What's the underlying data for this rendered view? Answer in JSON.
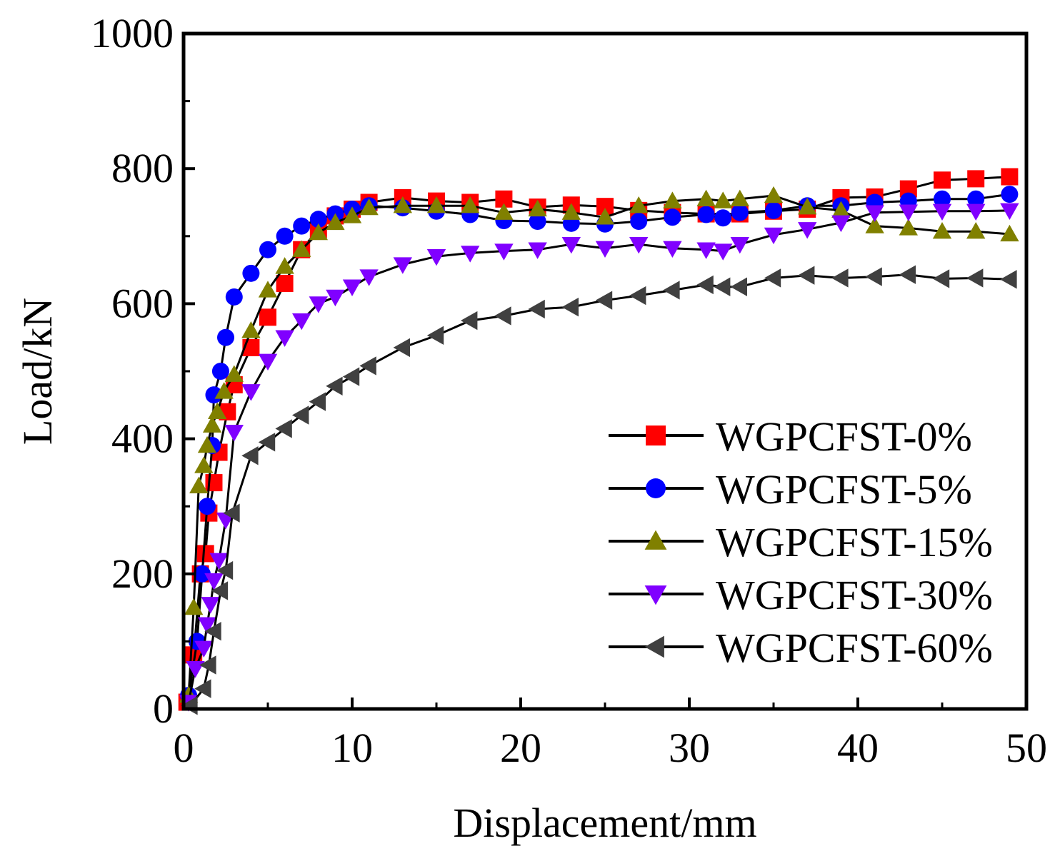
{
  "chart_data": {
    "type": "line",
    "xlabel": "Displacement/mm",
    "ylabel": "Load/kN",
    "xlim": [
      0,
      50
    ],
    "ylim": [
      0,
      1000
    ],
    "x_ticks": [
      0,
      10,
      20,
      30,
      40,
      50
    ],
    "y_ticks": [
      0,
      200,
      400,
      600,
      800,
      1000
    ],
    "x_tick_labels": [
      "0",
      "10",
      "20",
      "30",
      "40",
      "50"
    ],
    "y_tick_labels": [
      "0",
      "200",
      "400",
      "600",
      "800",
      "1000"
    ],
    "grid": false,
    "legend_position": "bottom-right",
    "series": [
      {
        "name": "WGPCFST-0%",
        "color": "#ff0000",
        "marker": "square",
        "points": [
          [
            0.2,
            10
          ],
          [
            0.6,
            80
          ],
          [
            1.0,
            200
          ],
          [
            1.3,
            230
          ],
          [
            1.5,
            290
          ],
          [
            1.8,
            335
          ],
          [
            2.1,
            380
          ],
          [
            2.6,
            440
          ],
          [
            3.0,
            480
          ],
          [
            4.0,
            535
          ],
          [
            5.0,
            580
          ],
          [
            6.0,
            630
          ],
          [
            7.0,
            680
          ],
          [
            8.0,
            710
          ],
          [
            9.0,
            730
          ],
          [
            10.0,
            740
          ],
          [
            11.0,
            750
          ],
          [
            13.0,
            757
          ],
          [
            15.0,
            752
          ],
          [
            17.0,
            750
          ],
          [
            19.0,
            755
          ],
          [
            21.0,
            743
          ],
          [
            23.0,
            746
          ],
          [
            25.0,
            744
          ],
          [
            27.0,
            738
          ],
          [
            29.0,
            735
          ],
          [
            31.0,
            733
          ],
          [
            33.0,
            733
          ],
          [
            35.0,
            737
          ],
          [
            37.0,
            740
          ],
          [
            39.0,
            757
          ],
          [
            41.0,
            758
          ],
          [
            43.0,
            770
          ],
          [
            45.0,
            783
          ],
          [
            47.0,
            785
          ],
          [
            49.0,
            788
          ]
        ]
      },
      {
        "name": "WGPCFST-5%",
        "color": "#0000ff",
        "marker": "circle",
        "points": [
          [
            0.3,
            20
          ],
          [
            0.8,
            100
          ],
          [
            1.1,
            200
          ],
          [
            1.4,
            300
          ],
          [
            1.7,
            390
          ],
          [
            1.8,
            465
          ],
          [
            2.2,
            500
          ],
          [
            2.5,
            550
          ],
          [
            3.0,
            610
          ],
          [
            4.0,
            645
          ],
          [
            5.0,
            680
          ],
          [
            6.0,
            700
          ],
          [
            7.0,
            715
          ],
          [
            8.0,
            725
          ],
          [
            9.0,
            733
          ],
          [
            10.0,
            740
          ],
          [
            11.0,
            745
          ],
          [
            13.0,
            742
          ],
          [
            15.0,
            737
          ],
          [
            17.0,
            732
          ],
          [
            19.0,
            723
          ],
          [
            21.0,
            722
          ],
          [
            23.0,
            719
          ],
          [
            25.0,
            718
          ],
          [
            27.0,
            722
          ],
          [
            29.0,
            728
          ],
          [
            31.0,
            732
          ],
          [
            32.0,
            727
          ],
          [
            33.0,
            735
          ],
          [
            35.0,
            738
          ],
          [
            37.0,
            745
          ],
          [
            39.0,
            745
          ],
          [
            41.0,
            750
          ],
          [
            43.0,
            752
          ],
          [
            45.0,
            755
          ],
          [
            47.0,
            755
          ],
          [
            49.0,
            762
          ]
        ]
      },
      {
        "name": "WGPCFST-15%",
        "color": "#808000",
        "marker": "triangle-up",
        "points": [
          [
            0.3,
            20
          ],
          [
            0.6,
            150
          ],
          [
            0.9,
            330
          ],
          [
            1.2,
            360
          ],
          [
            1.4,
            390
          ],
          [
            1.7,
            420
          ],
          [
            2.0,
            440
          ],
          [
            2.4,
            470
          ],
          [
            3.0,
            495
          ],
          [
            4.0,
            560
          ],
          [
            5.0,
            620
          ],
          [
            6.0,
            655
          ],
          [
            7.0,
            680
          ],
          [
            8.0,
            705
          ],
          [
            9.0,
            720
          ],
          [
            10.0,
            730
          ],
          [
            11.0,
            742
          ],
          [
            13.0,
            745
          ],
          [
            15.0,
            745
          ],
          [
            17.0,
            745
          ],
          [
            19.0,
            735
          ],
          [
            21.0,
            740
          ],
          [
            23.0,
            735
          ],
          [
            25.0,
            728
          ],
          [
            27.0,
            745
          ],
          [
            29.0,
            752
          ],
          [
            31.0,
            755
          ],
          [
            32.0,
            752
          ],
          [
            33.0,
            755
          ],
          [
            35.0,
            760
          ],
          [
            37.0,
            743
          ],
          [
            39.0,
            738
          ],
          [
            41.0,
            715
          ],
          [
            43.0,
            712
          ],
          [
            45.0,
            707
          ],
          [
            47.0,
            707
          ],
          [
            49.0,
            703
          ]
        ]
      },
      {
        "name": "WGPCFST-30%",
        "color": "#8000ff",
        "marker": "triangle-down",
        "points": [
          [
            0.3,
            10
          ],
          [
            0.7,
            60
          ],
          [
            1.2,
            90
          ],
          [
            1.4,
            125
          ],
          [
            1.6,
            155
          ],
          [
            1.8,
            190
          ],
          [
            2.1,
            220
          ],
          [
            2.5,
            280
          ],
          [
            3.0,
            410
          ],
          [
            4.0,
            470
          ],
          [
            5.0,
            515
          ],
          [
            6.0,
            550
          ],
          [
            7.0,
            575
          ],
          [
            8.0,
            600
          ],
          [
            9.0,
            610
          ],
          [
            10.0,
            625
          ],
          [
            11.0,
            640
          ],
          [
            13.0,
            658
          ],
          [
            15.0,
            670
          ],
          [
            17.0,
            675
          ],
          [
            19.0,
            678
          ],
          [
            21.0,
            680
          ],
          [
            23.0,
            688
          ],
          [
            25.0,
            682
          ],
          [
            27.0,
            688
          ],
          [
            29.0,
            682
          ],
          [
            31.0,
            680
          ],
          [
            32.0,
            678
          ],
          [
            33.0,
            688
          ],
          [
            35.0,
            702
          ],
          [
            37.0,
            710
          ],
          [
            39.0,
            720
          ],
          [
            41.0,
            735
          ],
          [
            43.0,
            736
          ],
          [
            45.0,
            737
          ],
          [
            47.0,
            737
          ],
          [
            49.0,
            738
          ]
        ]
      },
      {
        "name": "WGPCFST-60%",
        "color": "#404040",
        "marker": "triangle-left",
        "points": [
          [
            0.4,
            5
          ],
          [
            1.2,
            30
          ],
          [
            1.5,
            65
          ],
          [
            1.8,
            115
          ],
          [
            2.2,
            175
          ],
          [
            2.5,
            205
          ],
          [
            2.9,
            290
          ],
          [
            4.0,
            375
          ],
          [
            5.0,
            395
          ],
          [
            6.0,
            415
          ],
          [
            7.0,
            435
          ],
          [
            8.0,
            455
          ],
          [
            9.0,
            478
          ],
          [
            10.0,
            492
          ],
          [
            11.0,
            508
          ],
          [
            13.0,
            535
          ],
          [
            15.0,
            553
          ],
          [
            17.0,
            575
          ],
          [
            19.0,
            582
          ],
          [
            21.0,
            592
          ],
          [
            23.0,
            595
          ],
          [
            25.0,
            605
          ],
          [
            27.0,
            612
          ],
          [
            29.0,
            620
          ],
          [
            31.0,
            628
          ],
          [
            32.0,
            625
          ],
          [
            33.0,
            625
          ],
          [
            35.0,
            638
          ],
          [
            37.0,
            642
          ],
          [
            39.0,
            638
          ],
          [
            41.0,
            640
          ],
          [
            43.0,
            643
          ],
          [
            45.0,
            637
          ],
          [
            47.0,
            638
          ],
          [
            49.0,
            636
          ]
        ]
      }
    ]
  }
}
